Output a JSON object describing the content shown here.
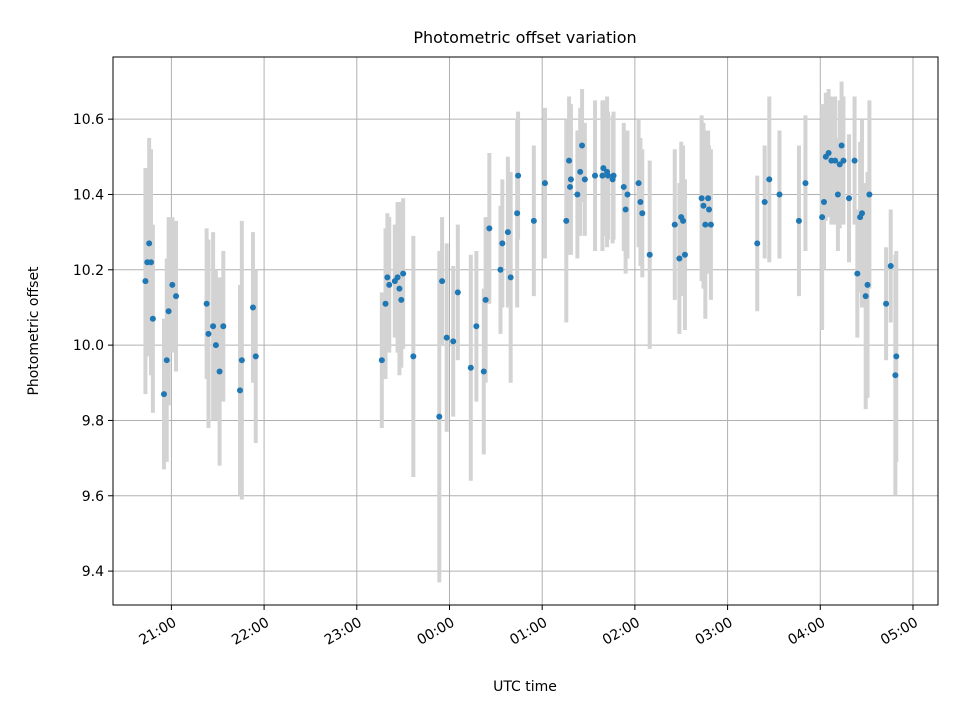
{
  "chart_data": {
    "type": "scatter",
    "title": "Photometric offset variation",
    "xlabel": "UTC time",
    "ylabel": "Photometric offset",
    "x_unit": "hours since 20:00 UTC",
    "xlim": [
      0.37,
      9.27
    ],
    "ylim": [
      9.31,
      10.765
    ],
    "grid": true,
    "colors": {
      "points": "#1f77b4",
      "errorbars": "#d3d3d3",
      "grid": "#b0b0b0"
    },
    "xticks": [
      {
        "value": 1,
        "label": "21:00"
      },
      {
        "value": 2,
        "label": "22:00"
      },
      {
        "value": 3,
        "label": "23:00"
      },
      {
        "value": 4,
        "label": "00:00"
      },
      {
        "value": 5,
        "label": "01:00"
      },
      {
        "value": 6,
        "label": "02:00"
      },
      {
        "value": 7,
        "label": "03:00"
      },
      {
        "value": 8,
        "label": "04:00"
      },
      {
        "value": 9,
        "label": "05:00"
      }
    ],
    "yticks": [
      {
        "value": 9.4,
        "label": "9.4"
      },
      {
        "value": 9.6,
        "label": "9.6"
      },
      {
        "value": 9.8,
        "label": "9.8"
      },
      {
        "value": 10.0,
        "label": "10.0"
      },
      {
        "value": 10.2,
        "label": "10.2"
      },
      {
        "value": 10.4,
        "label": "10.4"
      },
      {
        "value": 10.6,
        "label": "10.6"
      }
    ],
    "points": [
      {
        "x": 0.72,
        "y": 10.17,
        "err": 0.3
      },
      {
        "x": 0.74,
        "y": 10.22,
        "err": 0.25
      },
      {
        "x": 0.76,
        "y": 10.27,
        "err": 0.28
      },
      {
        "x": 0.78,
        "y": 10.22,
        "err": 0.3
      },
      {
        "x": 0.8,
        "y": 10.07,
        "err": 0.25
      },
      {
        "x": 0.92,
        "y": 9.87,
        "err": 0.2
      },
      {
        "x": 0.95,
        "y": 9.96,
        "err": 0.27
      },
      {
        "x": 0.97,
        "y": 10.09,
        "err": 0.25
      },
      {
        "x": 1.01,
        "y": 10.16,
        "err": 0.18
      },
      {
        "x": 1.05,
        "y": 10.13,
        "err": 0.2
      },
      {
        "x": 1.38,
        "y": 10.11,
        "err": 0.2
      },
      {
        "x": 1.4,
        "y": 10.03,
        "err": 0.25
      },
      {
        "x": 1.45,
        "y": 10.05,
        "err": 0.25
      },
      {
        "x": 1.48,
        "y": 10.0,
        "err": 0.2
      },
      {
        "x": 1.52,
        "y": 9.93,
        "err": 0.25
      },
      {
        "x": 1.56,
        "y": 10.05,
        "err": 0.2
      },
      {
        "x": 1.74,
        "y": 9.88,
        "err": 0.28
      },
      {
        "x": 1.76,
        "y": 9.96,
        "err": 0.37
      },
      {
        "x": 1.88,
        "y": 10.1,
        "err": 0.2
      },
      {
        "x": 1.91,
        "y": 9.97,
        "err": 0.23
      },
      {
        "x": 3.27,
        "y": 9.96,
        "err": 0.18
      },
      {
        "x": 3.31,
        "y": 10.11,
        "err": 0.2
      },
      {
        "x": 3.33,
        "y": 10.18,
        "err": 0.17
      },
      {
        "x": 3.35,
        "y": 10.16,
        "err": 0.18
      },
      {
        "x": 3.41,
        "y": 10.17,
        "err": 0.15
      },
      {
        "x": 3.44,
        "y": 10.18,
        "err": 0.2
      },
      {
        "x": 3.46,
        "y": 10.15,
        "err": 0.23
      },
      {
        "x": 3.48,
        "y": 10.12,
        "err": 0.18
      },
      {
        "x": 3.5,
        "y": 10.19,
        "err": 0.2
      },
      {
        "x": 3.61,
        "y": 9.97,
        "err": 0.32
      },
      {
        "x": 3.89,
        "y": 9.81,
        "err": 0.44
      },
      {
        "x": 3.92,
        "y": 10.17,
        "err": 0.17
      },
      {
        "x": 3.97,
        "y": 10.02,
        "err": 0.25
      },
      {
        "x": 4.04,
        "y": 10.01,
        "err": 0.2
      },
      {
        "x": 4.09,
        "y": 10.14,
        "err": 0.18
      },
      {
        "x": 4.23,
        "y": 9.94,
        "err": 0.3
      },
      {
        "x": 4.29,
        "y": 10.05,
        "err": 0.2
      },
      {
        "x": 4.37,
        "y": 9.93,
        "err": 0.22
      },
      {
        "x": 4.39,
        "y": 10.12,
        "err": 0.22
      },
      {
        "x": 4.43,
        "y": 10.31,
        "err": 0.2
      },
      {
        "x": 4.55,
        "y": 10.2,
        "err": 0.17
      },
      {
        "x": 4.57,
        "y": 10.27,
        "err": 0.17
      },
      {
        "x": 4.63,
        "y": 10.3,
        "err": 0.2
      },
      {
        "x": 4.66,
        "y": 10.18,
        "err": 0.28
      },
      {
        "x": 4.73,
        "y": 10.35,
        "err": 0.25
      },
      {
        "x": 4.74,
        "y": 10.45,
        "err": 0.17
      },
      {
        "x": 4.91,
        "y": 10.33,
        "err": 0.2
      },
      {
        "x": 5.03,
        "y": 10.43,
        "err": 0.2
      },
      {
        "x": 5.26,
        "y": 10.33,
        "err": 0.27
      },
      {
        "x": 5.29,
        "y": 10.49,
        "err": 0.17
      },
      {
        "x": 5.3,
        "y": 10.42,
        "err": 0.18
      },
      {
        "x": 5.31,
        "y": 10.44,
        "err": 0.2
      },
      {
        "x": 5.38,
        "y": 10.4,
        "err": 0.17
      },
      {
        "x": 5.41,
        "y": 10.46,
        "err": 0.17
      },
      {
        "x": 5.43,
        "y": 10.53,
        "err": 0.15
      },
      {
        "x": 5.46,
        "y": 10.44,
        "err": 0.15
      },
      {
        "x": 5.57,
        "y": 10.45,
        "err": 0.2
      },
      {
        "x": 5.65,
        "y": 10.45,
        "err": 0.2
      },
      {
        "x": 5.66,
        "y": 10.47,
        "err": 0.18
      },
      {
        "x": 5.7,
        "y": 10.46,
        "err": 0.2
      },
      {
        "x": 5.71,
        "y": 10.45,
        "err": 0.17
      },
      {
        "x": 5.76,
        "y": 10.44,
        "err": 0.17
      },
      {
        "x": 5.77,
        "y": 10.45,
        "err": 0.17
      },
      {
        "x": 5.88,
        "y": 10.42,
        "err": 0.17
      },
      {
        "x": 5.9,
        "y": 10.36,
        "err": 0.17
      },
      {
        "x": 5.92,
        "y": 10.4,
        "err": 0.17
      },
      {
        "x": 6.04,
        "y": 10.43,
        "err": 0.17
      },
      {
        "x": 6.06,
        "y": 10.38,
        "err": 0.17
      },
      {
        "x": 6.08,
        "y": 10.35,
        "err": 0.17
      },
      {
        "x": 6.16,
        "y": 10.24,
        "err": 0.25
      },
      {
        "x": 6.43,
        "y": 10.32,
        "err": 0.2
      },
      {
        "x": 6.48,
        "y": 10.23,
        "err": 0.2
      },
      {
        "x": 6.5,
        "y": 10.34,
        "err": 0.2
      },
      {
        "x": 6.52,
        "y": 10.33,
        "err": 0.2
      },
      {
        "x": 6.54,
        "y": 10.24,
        "err": 0.2
      },
      {
        "x": 6.72,
        "y": 10.39,
        "err": 0.22
      },
      {
        "x": 6.74,
        "y": 10.37,
        "err": 0.22
      },
      {
        "x": 6.76,
        "y": 10.32,
        "err": 0.25
      },
      {
        "x": 6.79,
        "y": 10.39,
        "err": 0.18
      },
      {
        "x": 6.8,
        "y": 10.36,
        "err": 0.17
      },
      {
        "x": 6.82,
        "y": 10.32,
        "err": 0.2
      },
      {
        "x": 7.32,
        "y": 10.27,
        "err": 0.18
      },
      {
        "x": 7.4,
        "y": 10.38,
        "err": 0.15
      },
      {
        "x": 7.45,
        "y": 10.44,
        "err": 0.22
      },
      {
        "x": 7.56,
        "y": 10.4,
        "err": 0.17
      },
      {
        "x": 7.77,
        "y": 10.33,
        "err": 0.2
      },
      {
        "x": 7.84,
        "y": 10.43,
        "err": 0.18
      },
      {
        "x": 8.02,
        "y": 10.34,
        "err": 0.3
      },
      {
        "x": 8.04,
        "y": 10.38,
        "err": 0.18
      },
      {
        "x": 8.06,
        "y": 10.5,
        "err": 0.17
      },
      {
        "x": 8.09,
        "y": 10.51,
        "err": 0.17
      },
      {
        "x": 8.12,
        "y": 10.49,
        "err": 0.17
      },
      {
        "x": 8.16,
        "y": 10.49,
        "err": 0.17
      },
      {
        "x": 8.19,
        "y": 10.4,
        "err": 0.15
      },
      {
        "x": 8.21,
        "y": 10.48,
        "err": 0.17
      },
      {
        "x": 8.23,
        "y": 10.53,
        "err": 0.17
      },
      {
        "x": 8.25,
        "y": 10.49,
        "err": 0.17
      },
      {
        "x": 8.31,
        "y": 10.39,
        "err": 0.17
      },
      {
        "x": 8.37,
        "y": 10.49,
        "err": 0.17
      },
      {
        "x": 8.4,
        "y": 10.19,
        "err": 0.17
      },
      {
        "x": 8.43,
        "y": 10.34,
        "err": 0.2
      },
      {
        "x": 8.45,
        "y": 10.35,
        "err": 0.25
      },
      {
        "x": 8.49,
        "y": 10.13,
        "err": 0.3
      },
      {
        "x": 8.51,
        "y": 10.16,
        "err": 0.3
      },
      {
        "x": 8.53,
        "y": 10.4,
        "err": 0.25
      },
      {
        "x": 8.71,
        "y": 10.11,
        "err": 0.15
      },
      {
        "x": 8.76,
        "y": 10.21,
        "err": 0.15
      },
      {
        "x": 8.81,
        "y": 9.92,
        "err": 0.32
      },
      {
        "x": 8.82,
        "y": 9.97,
        "err": 0.28
      }
    ]
  }
}
